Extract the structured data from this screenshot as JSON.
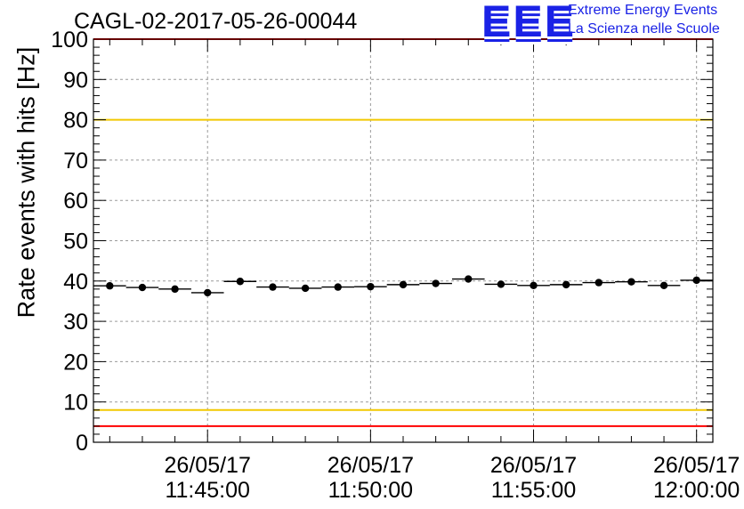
{
  "header": {
    "title": "CAGL-02-2017-05-26-00044",
    "logo_text": "EEE",
    "tagline_1": "Extreme Energy Events",
    "tagline_2": "La Scienza nelle Scuole"
  },
  "colors": {
    "logo": "#1a22e6",
    "red_threshold": "#ff0000",
    "yellow_threshold": "#f2c800",
    "grid": "#9a9a9a",
    "points": "#000000"
  },
  "chart_data": {
    "type": "scatter",
    "title": "CAGL-02-2017-05-26-00044",
    "ylabel": "Rate events with hits [Hz]",
    "xlabel": "",
    "ylim": [
      0,
      100
    ],
    "yticks": [
      0,
      10,
      20,
      30,
      40,
      50,
      60,
      70,
      80,
      90,
      100
    ],
    "xlim": [
      "11:41:30",
      "12:00:30"
    ],
    "xticks": [
      {
        "time": "11:45:00",
        "date_label": "26/05/17",
        "time_label": "11:45:00"
      },
      {
        "time": "11:50:00",
        "date_label": "26/05/17",
        "time_label": "11:50:00"
      },
      {
        "time": "11:55:00",
        "date_label": "26/05/17",
        "time_label": "11:55:00"
      },
      {
        "time": "12:00:00",
        "date_label": "26/05/17",
        "time_label": "12:00:00"
      }
    ],
    "grid": true,
    "thresholds": [
      {
        "value": 100,
        "color": "red"
      },
      {
        "value": 80,
        "color": "yellow"
      },
      {
        "value": 8,
        "color": "yellow"
      },
      {
        "value": 4,
        "color": "red"
      }
    ],
    "points": [
      {
        "x": "11:42:00",
        "y": 38.8
      },
      {
        "x": "11:43:00",
        "y": 38.4
      },
      {
        "x": "11:44:00",
        "y": 38.0
      },
      {
        "x": "11:45:00",
        "y": 37.1
      },
      {
        "x": "11:46:00",
        "y": 39.9
      },
      {
        "x": "11:47:00",
        "y": 38.5
      },
      {
        "x": "11:48:00",
        "y": 38.2
      },
      {
        "x": "11:49:00",
        "y": 38.5
      },
      {
        "x": "11:50:00",
        "y": 38.6
      },
      {
        "x": "11:51:00",
        "y": 39.1
      },
      {
        "x": "11:52:00",
        "y": 39.4
      },
      {
        "x": "11:53:00",
        "y": 40.5
      },
      {
        "x": "11:54:00",
        "y": 39.2
      },
      {
        "x": "11:55:00",
        "y": 38.9
      },
      {
        "x": "11:56:00",
        "y": 39.1
      },
      {
        "x": "11:57:00",
        "y": 39.6
      },
      {
        "x": "11:58:00",
        "y": 39.8
      },
      {
        "x": "11:59:00",
        "y": 38.9
      },
      {
        "x": "12:00:00",
        "y": 40.2
      }
    ]
  }
}
